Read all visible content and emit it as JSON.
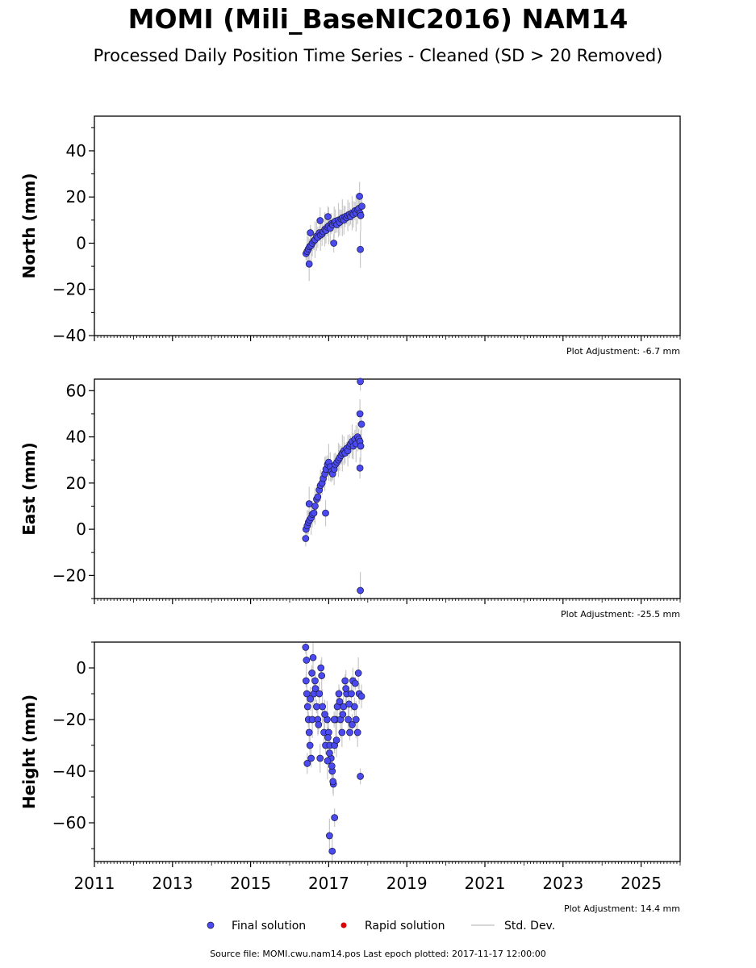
{
  "title": "MOMI (Mili_BaseNIC2016) NAM14",
  "subtitle": "Processed Daily Position Time Series - Cleaned (SD > 20 Removed)",
  "footer": "Source file: MOMI.cwu.nam14.pos  Last epoch plotted: 2017-11-17 12:00:00",
  "colors": {
    "final_fill": "#4a4af0",
    "final_edge": "#1a1a40",
    "rapid": "#dd0000",
    "stddev": "#c8c8c8"
  },
  "chart_data": [
    {
      "type": "scatter",
      "ylabel": "North (mm)",
      "adjustment": "Plot Adjustment: -6.7 mm",
      "xlim": [
        2011,
        2026
      ],
      "ylim": [
        -40,
        55
      ],
      "yticks": [
        -40,
        -20,
        0,
        20,
        40
      ],
      "xtick_labels_shown": false,
      "series": [
        {
          "name": "Final solution",
          "x": [
            2016.42,
            2016.45,
            2016.48,
            2016.51,
            2016.55,
            2016.58,
            2016.62,
            2016.65,
            2016.69,
            2016.72,
            2016.76,
            2016.79,
            2016.83,
            2016.86,
            2016.9,
            2016.93,
            2016.97,
            2017.0,
            2017.04,
            2017.07,
            2017.1,
            2017.14,
            2017.17,
            2017.21,
            2017.25,
            2017.28,
            2017.32,
            2017.35,
            2017.39,
            2017.42,
            2017.46,
            2017.49,
            2017.53,
            2017.56,
            2017.6,
            2017.63,
            2017.67,
            2017.7,
            2017.74,
            2017.77,
            2017.8,
            2017.82,
            2017.85,
            2016.53,
            2016.5,
            2016.78,
            2017.13,
            2017.81,
            2017.79,
            2016.98
          ],
          "y": [
            -4.5,
            -3.5,
            -2.5,
            -1.5,
            -1,
            0,
            1,
            1.5,
            3,
            2.5,
            4.5,
            3.5,
            4,
            5,
            6,
            5.5,
            7,
            7.5,
            6.5,
            8.5,
            8,
            9,
            9.5,
            8,
            10,
            9,
            10.5,
            11,
            10,
            11.5,
            11,
            12,
            12.5,
            11.5,
            13,
            12.5,
            14,
            13,
            14.5,
            15,
            13,
            12,
            16,
            4.5,
            -9,
            9.8,
            0,
            -2.7,
            20.3,
            11.5
          ]
        },
        {
          "name": "Rapid solution",
          "x": [],
          "y": []
        }
      ]
    },
    {
      "type": "scatter",
      "ylabel": "East (mm)",
      "adjustment": "Plot Adjustment: -25.5 mm",
      "xlim": [
        2011,
        2026
      ],
      "ylim": [
        -30,
        65
      ],
      "yticks": [
        -20,
        0,
        20,
        40,
        60
      ],
      "xtick_labels_shown": false,
      "series": [
        {
          "name": "Final solution",
          "x": [
            2016.42,
            2016.45,
            2016.48,
            2016.51,
            2016.55,
            2016.58,
            2016.62,
            2016.65,
            2016.69,
            2016.72,
            2016.76,
            2016.79,
            2016.83,
            2016.86,
            2016.9,
            2016.93,
            2016.97,
            2017.0,
            2017.04,
            2017.07,
            2017.1,
            2017.14,
            2017.17,
            2017.21,
            2017.25,
            2017.28,
            2017.32,
            2017.35,
            2017.39,
            2017.42,
            2017.46,
            2017.49,
            2017.53,
            2017.56,
            2017.6,
            2017.63,
            2017.67,
            2017.7,
            2017.74,
            2017.77,
            2017.8,
            2017.82,
            2017.84,
            2016.41,
            2016.5,
            2016.92,
            2017.81,
            2017.81,
            2017.8,
            2017.8
          ],
          "y": [
            0,
            1.5,
            3,
            4,
            5,
            6.5,
            7,
            10,
            13,
            14,
            17,
            19,
            20,
            22,
            24,
            26,
            28,
            29,
            27,
            25,
            24,
            26,
            28,
            29,
            30,
            31,
            32,
            33,
            34,
            33,
            35,
            34,
            36,
            37,
            38,
            36,
            39,
            37,
            40,
            39,
            38,
            36,
            45.5,
            -4,
            11,
            7,
            64,
            -26.5,
            50,
            26.5
          ]
        },
        {
          "name": "Rapid solution",
          "x": [],
          "y": []
        }
      ]
    },
    {
      "type": "scatter",
      "ylabel": "Height (mm)",
      "adjustment": "Plot Adjustment: 14.4 mm",
      "xlim": [
        2011,
        2026
      ],
      "ylim": [
        -75,
        10
      ],
      "yticks": [
        -60,
        -40,
        -20,
        0
      ],
      "xtick_labels_shown": true,
      "xticks": [
        2011,
        2013,
        2015,
        2017,
        2019,
        2021,
        2023,
        2025
      ],
      "xtick_labels": [
        "2011",
        "2013",
        "2015",
        "2017",
        "2019",
        "2021",
        "2023",
        "2025"
      ],
      "series": [
        {
          "name": "Final solution",
          "x": [
            2016.42,
            2016.44,
            2016.46,
            2016.48,
            2016.5,
            2016.52,
            2016.55,
            2016.58,
            2016.62,
            2016.65,
            2016.69,
            2016.72,
            2016.76,
            2016.8,
            2016.84,
            2016.88,
            2016.92,
            2016.96,
            2017.0,
            2017.03,
            2017.06,
            2017.09,
            2017.12,
            2017.15,
            2017.18,
            2017.22,
            2017.26,
            2017.3,
            2017.34,
            2017.38,
            2017.42,
            2017.46,
            2017.5,
            2017.54,
            2017.58,
            2017.62,
            2017.66,
            2017.7,
            2017.74,
            2017.78,
            2016.41,
            2016.43,
            2016.53,
            2016.57,
            2016.6,
            2016.66,
            2016.74,
            2016.82,
            2016.9,
            2016.98,
            2017.02,
            2017.08,
            2017.11,
            2017.14,
            2017.2,
            2017.28,
            2017.36,
            2017.44,
            2017.52,
            2017.6,
            2017.68,
            2017.76,
            2017.84,
            2017.81,
            2017.02,
            2017.09,
            2017.15,
            2016.97,
            2016.78,
            2016.45
          ],
          "y": [
            -5,
            -10,
            -15,
            -20,
            -25,
            -30,
            -35,
            -20,
            -10,
            -5,
            -15,
            -20,
            -10,
            0,
            -15,
            -25,
            -30,
            -20,
            -25,
            -30,
            -35,
            -40,
            -45,
            -30,
            -20,
            -15,
            -10,
            -20,
            -25,
            -15,
            -5,
            -10,
            -20,
            -25,
            -10,
            -5,
            -15,
            -20,
            -25,
            -10,
            8,
            3,
            -12,
            -2,
            4,
            -8,
            -22,
            -3,
            -18,
            -27,
            -33,
            -38,
            -44,
            -20,
            -28,
            -13,
            -18,
            -8,
            -14,
            -22,
            -6,
            -2,
            -11,
            -42,
            -65,
            -71,
            -58,
            -36,
            -35,
            -37
          ]
        },
        {
          "name": "Rapid solution",
          "x": [],
          "y": []
        }
      ]
    }
  ],
  "legend": {
    "placement": "bottom-center",
    "items": [
      {
        "label": "Final solution"
      },
      {
        "label": "Rapid solution"
      },
      {
        "label": "Std. Dev."
      }
    ]
  }
}
